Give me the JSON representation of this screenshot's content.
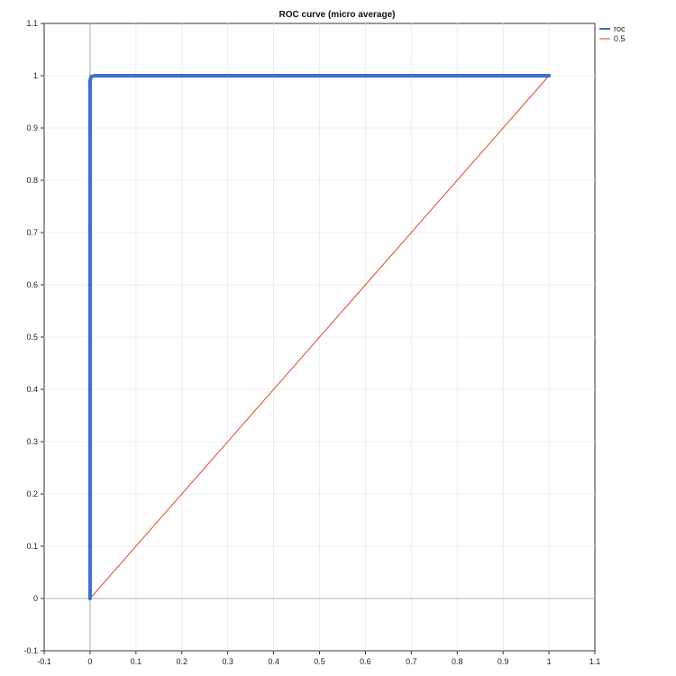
{
  "chart_data": {
    "type": "line",
    "title": "ROC curve (micro average)",
    "xlabel": "",
    "ylabel": "",
    "xlim": [
      -0.1,
      1.1
    ],
    "ylim": [
      -0.1,
      1.1
    ],
    "xticks": [
      "-0.1",
      "0",
      "0.1",
      "0.2",
      "0.3",
      "0.4",
      "0.5",
      "0.6",
      "0.7",
      "0.8",
      "0.9",
      "1",
      "1.1"
    ],
    "yticks": [
      "-0.1",
      "0",
      "0.1",
      "0.2",
      "0.3",
      "0.4",
      "0.5",
      "0.6",
      "0.7",
      "0.8",
      "0.9",
      "1",
      "1.1"
    ],
    "grid": true,
    "legend_position": "top-right",
    "series": [
      {
        "name": "roc",
        "color": "#3a6fd0",
        "x": [
          0,
          0,
          0,
          0.002,
          0.01,
          1
        ],
        "y": [
          0,
          0.5,
          0.99,
          0.998,
          1,
          1
        ]
      },
      {
        "name": "0.5",
        "color": "#e2462a",
        "x": [
          0,
          1
        ],
        "y": [
          0,
          1
        ]
      }
    ]
  }
}
